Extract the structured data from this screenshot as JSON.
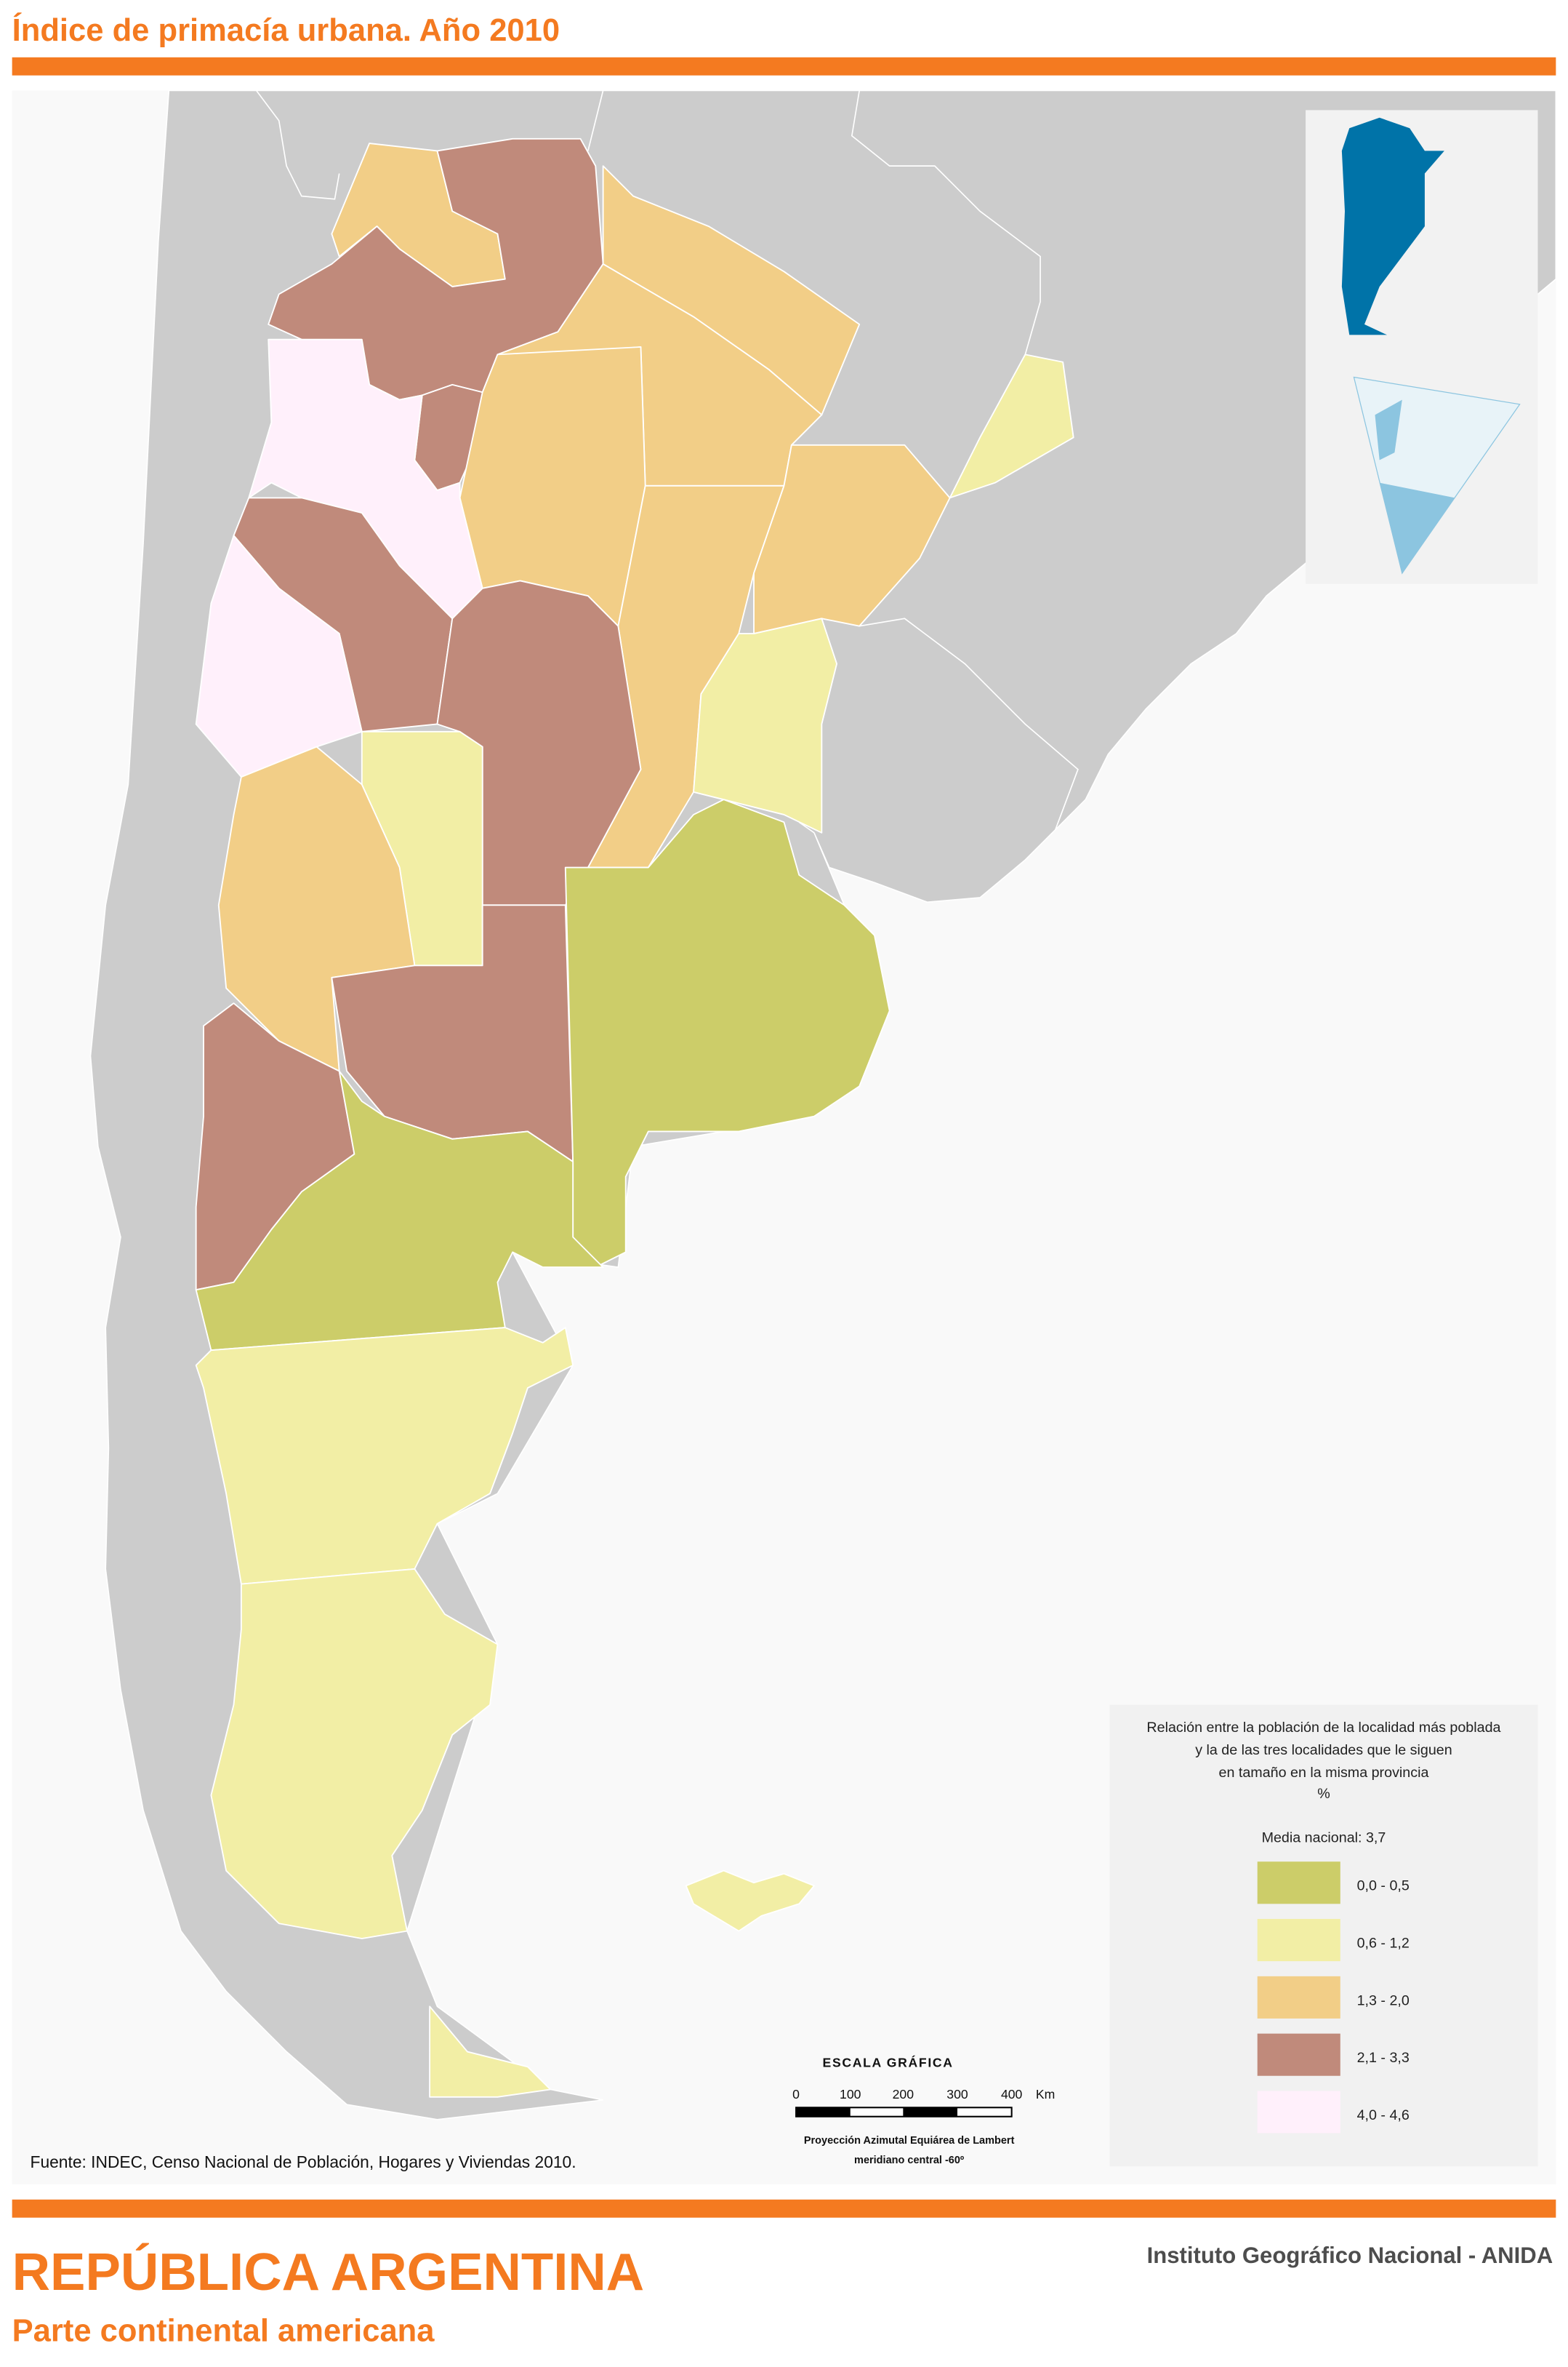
{
  "header": {
    "title": "Índice de primacía urbana. Año 2010",
    "accent_color": "#f47a20"
  },
  "legend": {
    "title_lines": [
      "Relación entre la población de la localidad más poblada",
      "y la de las tres localidades que le siguen",
      "en tamaño en la misma provincia",
      "%"
    ],
    "national_mean": "Media nacional: 3,7",
    "classes": [
      {
        "label": "0,0 - 0,5",
        "color": "#cccd69"
      },
      {
        "label": "0,6 - 1,2",
        "color": "#f2eea5"
      },
      {
        "label": "1,3 - 2,0",
        "color": "#f2ce87"
      },
      {
        "label": "2,1 - 3,3",
        "color": "#c08a7b"
      },
      {
        "label": "4,0 - 4,6",
        "color": "#fff0fb"
      }
    ]
  },
  "scale": {
    "title": "ESCALA GRÁFICA",
    "ticks": [
      "0",
      "100",
      "200",
      "300",
      "400"
    ],
    "unit": "Km",
    "projection_line1": "Proyección Azimutal Equiárea de Lambert",
    "projection_line2": "meridiano central -60º"
  },
  "source": "Fuente: INDEC, Censo Nacional de Población, Hogares y Viviendas 2010.",
  "footer": {
    "country": "REPÚBLICA ARGENTINA",
    "subtitle": "Parte continental americana",
    "institution": "Instituto Geográfico Nacional - ANIDA"
  },
  "map_colors": {
    "sea": "#f9f9f9",
    "neighbors": "#cccccc",
    "inset_country": "#0073a8",
    "inset_antarctica": "#8cc5e0"
  }
}
